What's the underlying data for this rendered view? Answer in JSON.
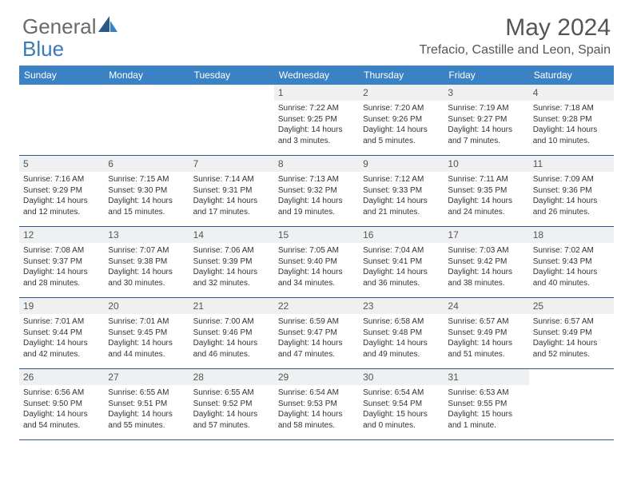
{
  "logo": {
    "text1": "General",
    "text2": "Blue"
  },
  "title": "May 2024",
  "location": "Trefacio, Castille and Leon, Spain",
  "colors": {
    "header_bg": "#3a82c4",
    "header_text": "#ffffff",
    "daynum_bg": "#eef0f2",
    "week_border": "#2a5a8a",
    "text": "#333333",
    "title_text": "#555555",
    "logo_gray": "#6a6a6a",
    "logo_blue": "#3a7ab8"
  },
  "fonts": {
    "title_size": 30,
    "location_size": 16,
    "header_size": 12,
    "daynum_size": 12,
    "body_size": 10
  },
  "day_names": [
    "Sunday",
    "Monday",
    "Tuesday",
    "Wednesday",
    "Thursday",
    "Friday",
    "Saturday"
  ],
  "weeks": [
    [
      null,
      null,
      null,
      {
        "n": "1",
        "sr": "Sunrise: 7:22 AM",
        "ss": "Sunset: 9:25 PM",
        "dl1": "Daylight: 14 hours",
        "dl2": "and 3 minutes."
      },
      {
        "n": "2",
        "sr": "Sunrise: 7:20 AM",
        "ss": "Sunset: 9:26 PM",
        "dl1": "Daylight: 14 hours",
        "dl2": "and 5 minutes."
      },
      {
        "n": "3",
        "sr": "Sunrise: 7:19 AM",
        "ss": "Sunset: 9:27 PM",
        "dl1": "Daylight: 14 hours",
        "dl2": "and 7 minutes."
      },
      {
        "n": "4",
        "sr": "Sunrise: 7:18 AM",
        "ss": "Sunset: 9:28 PM",
        "dl1": "Daylight: 14 hours",
        "dl2": "and 10 minutes."
      }
    ],
    [
      {
        "n": "5",
        "sr": "Sunrise: 7:16 AM",
        "ss": "Sunset: 9:29 PM",
        "dl1": "Daylight: 14 hours",
        "dl2": "and 12 minutes."
      },
      {
        "n": "6",
        "sr": "Sunrise: 7:15 AM",
        "ss": "Sunset: 9:30 PM",
        "dl1": "Daylight: 14 hours",
        "dl2": "and 15 minutes."
      },
      {
        "n": "7",
        "sr": "Sunrise: 7:14 AM",
        "ss": "Sunset: 9:31 PM",
        "dl1": "Daylight: 14 hours",
        "dl2": "and 17 minutes."
      },
      {
        "n": "8",
        "sr": "Sunrise: 7:13 AM",
        "ss": "Sunset: 9:32 PM",
        "dl1": "Daylight: 14 hours",
        "dl2": "and 19 minutes."
      },
      {
        "n": "9",
        "sr": "Sunrise: 7:12 AM",
        "ss": "Sunset: 9:33 PM",
        "dl1": "Daylight: 14 hours",
        "dl2": "and 21 minutes."
      },
      {
        "n": "10",
        "sr": "Sunrise: 7:11 AM",
        "ss": "Sunset: 9:35 PM",
        "dl1": "Daylight: 14 hours",
        "dl2": "and 24 minutes."
      },
      {
        "n": "11",
        "sr": "Sunrise: 7:09 AM",
        "ss": "Sunset: 9:36 PM",
        "dl1": "Daylight: 14 hours",
        "dl2": "and 26 minutes."
      }
    ],
    [
      {
        "n": "12",
        "sr": "Sunrise: 7:08 AM",
        "ss": "Sunset: 9:37 PM",
        "dl1": "Daylight: 14 hours",
        "dl2": "and 28 minutes."
      },
      {
        "n": "13",
        "sr": "Sunrise: 7:07 AM",
        "ss": "Sunset: 9:38 PM",
        "dl1": "Daylight: 14 hours",
        "dl2": "and 30 minutes."
      },
      {
        "n": "14",
        "sr": "Sunrise: 7:06 AM",
        "ss": "Sunset: 9:39 PM",
        "dl1": "Daylight: 14 hours",
        "dl2": "and 32 minutes."
      },
      {
        "n": "15",
        "sr": "Sunrise: 7:05 AM",
        "ss": "Sunset: 9:40 PM",
        "dl1": "Daylight: 14 hours",
        "dl2": "and 34 minutes."
      },
      {
        "n": "16",
        "sr": "Sunrise: 7:04 AM",
        "ss": "Sunset: 9:41 PM",
        "dl1": "Daylight: 14 hours",
        "dl2": "and 36 minutes."
      },
      {
        "n": "17",
        "sr": "Sunrise: 7:03 AM",
        "ss": "Sunset: 9:42 PM",
        "dl1": "Daylight: 14 hours",
        "dl2": "and 38 minutes."
      },
      {
        "n": "18",
        "sr": "Sunrise: 7:02 AM",
        "ss": "Sunset: 9:43 PM",
        "dl1": "Daylight: 14 hours",
        "dl2": "and 40 minutes."
      }
    ],
    [
      {
        "n": "19",
        "sr": "Sunrise: 7:01 AM",
        "ss": "Sunset: 9:44 PM",
        "dl1": "Daylight: 14 hours",
        "dl2": "and 42 minutes."
      },
      {
        "n": "20",
        "sr": "Sunrise: 7:01 AM",
        "ss": "Sunset: 9:45 PM",
        "dl1": "Daylight: 14 hours",
        "dl2": "and 44 minutes."
      },
      {
        "n": "21",
        "sr": "Sunrise: 7:00 AM",
        "ss": "Sunset: 9:46 PM",
        "dl1": "Daylight: 14 hours",
        "dl2": "and 46 minutes."
      },
      {
        "n": "22",
        "sr": "Sunrise: 6:59 AM",
        "ss": "Sunset: 9:47 PM",
        "dl1": "Daylight: 14 hours",
        "dl2": "and 47 minutes."
      },
      {
        "n": "23",
        "sr": "Sunrise: 6:58 AM",
        "ss": "Sunset: 9:48 PM",
        "dl1": "Daylight: 14 hours",
        "dl2": "and 49 minutes."
      },
      {
        "n": "24",
        "sr": "Sunrise: 6:57 AM",
        "ss": "Sunset: 9:49 PM",
        "dl1": "Daylight: 14 hours",
        "dl2": "and 51 minutes."
      },
      {
        "n": "25",
        "sr": "Sunrise: 6:57 AM",
        "ss": "Sunset: 9:49 PM",
        "dl1": "Daylight: 14 hours",
        "dl2": "and 52 minutes."
      }
    ],
    [
      {
        "n": "26",
        "sr": "Sunrise: 6:56 AM",
        "ss": "Sunset: 9:50 PM",
        "dl1": "Daylight: 14 hours",
        "dl2": "and 54 minutes."
      },
      {
        "n": "27",
        "sr": "Sunrise: 6:55 AM",
        "ss": "Sunset: 9:51 PM",
        "dl1": "Daylight: 14 hours",
        "dl2": "and 55 minutes."
      },
      {
        "n": "28",
        "sr": "Sunrise: 6:55 AM",
        "ss": "Sunset: 9:52 PM",
        "dl1": "Daylight: 14 hours",
        "dl2": "and 57 minutes."
      },
      {
        "n": "29",
        "sr": "Sunrise: 6:54 AM",
        "ss": "Sunset: 9:53 PM",
        "dl1": "Daylight: 14 hours",
        "dl2": "and 58 minutes."
      },
      {
        "n": "30",
        "sr": "Sunrise: 6:54 AM",
        "ss": "Sunset: 9:54 PM",
        "dl1": "Daylight: 15 hours",
        "dl2": "and 0 minutes."
      },
      {
        "n": "31",
        "sr": "Sunrise: 6:53 AM",
        "ss": "Sunset: 9:55 PM",
        "dl1": "Daylight: 15 hours",
        "dl2": "and 1 minute."
      },
      null
    ]
  ]
}
